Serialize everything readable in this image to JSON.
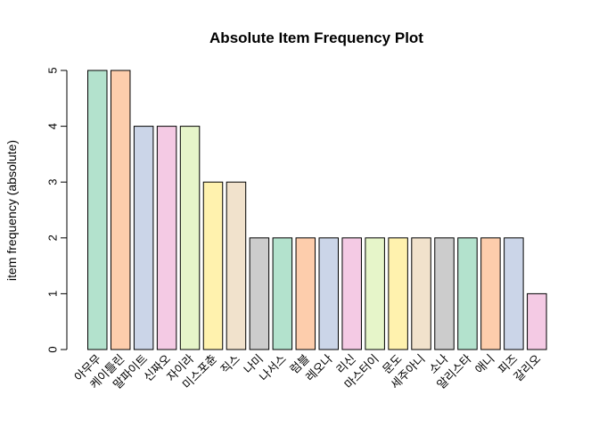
{
  "chart_data": {
    "type": "bar",
    "title": "Absolute Item Frequency Plot",
    "xlabel": "",
    "ylabel": "item frequency (absolute)",
    "ylim": [
      0,
      5
    ],
    "yticks": [
      0,
      1,
      2,
      3,
      4,
      5
    ],
    "grid": false,
    "categories": [
      "아무무",
      "케이틀린",
      "말파이트",
      "신짜오",
      "자이라",
      "미스포츈",
      "직스",
      "나미",
      "나서스",
      "럼블",
      "레오나",
      "리신",
      "마스터이",
      "문도",
      "세주아니",
      "소나",
      "알리스타",
      "애니",
      "피즈",
      "갈리오"
    ],
    "values": [
      5,
      5,
      4,
      4,
      4,
      3,
      3,
      2,
      2,
      2,
      2,
      2,
      2,
      2,
      2,
      2,
      2,
      2,
      2,
      1
    ],
    "colors": [
      "#B3E2CD",
      "#FDCDAC",
      "#CBD5E8",
      "#F4CAE4",
      "#E6F5C9",
      "#FFF2AE",
      "#F1E2CC",
      "#CCCCCC",
      "#B3E2CD",
      "#FDCDAC",
      "#CBD5E8",
      "#F4CAE4",
      "#E6F5C9",
      "#FFF2AE",
      "#F1E2CC",
      "#CCCCCC",
      "#B3E2CD",
      "#FDCDAC",
      "#CBD5E8",
      "#F4CAE4"
    ]
  }
}
